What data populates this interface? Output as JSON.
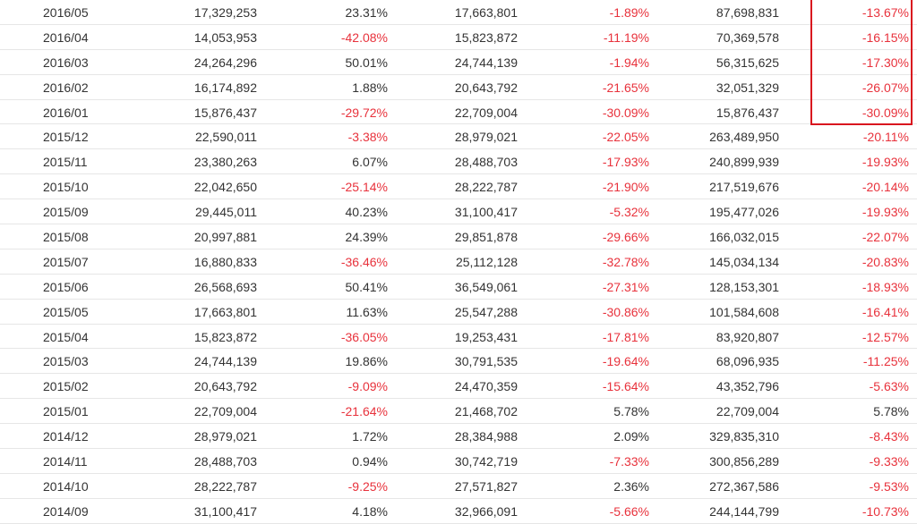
{
  "colors": {
    "text": "#333333",
    "negative": "#e8323c",
    "highlight_border": "#d9141e",
    "row_divider": "#e6e6e6"
  },
  "rows": [
    {
      "period": "2016/05",
      "v1": "17,329,253",
      "p1": "23.31%",
      "v2": "17,663,801",
      "p2": "-1.89%",
      "v3": "87,698,831",
      "p3": "-13.67%"
    },
    {
      "period": "2016/04",
      "v1": "14,053,953",
      "p1": "-42.08%",
      "v2": "15,823,872",
      "p2": "-11.19%",
      "v3": "70,369,578",
      "p3": "-16.15%"
    },
    {
      "period": "2016/03",
      "v1": "24,264,296",
      "p1": "50.01%",
      "v2": "24,744,139",
      "p2": "-1.94%",
      "v3": "56,315,625",
      "p3": "-17.30%"
    },
    {
      "period": "2016/02",
      "v1": "16,174,892",
      "p1": "1.88%",
      "v2": "20,643,792",
      "p2": "-21.65%",
      "v3": "32,051,329",
      "p3": "-26.07%"
    },
    {
      "period": "2016/01",
      "v1": "15,876,437",
      "p1": "-29.72%",
      "v2": "22,709,004",
      "p2": "-30.09%",
      "v3": "15,876,437",
      "p3": "-30.09%"
    },
    {
      "period": "2015/12",
      "v1": "22,590,011",
      "p1": "-3.38%",
      "v2": "28,979,021",
      "p2": "-22.05%",
      "v3": "263,489,950",
      "p3": "-20.11%"
    },
    {
      "period": "2015/11",
      "v1": "23,380,263",
      "p1": "6.07%",
      "v2": "28,488,703",
      "p2": "-17.93%",
      "v3": "240,899,939",
      "p3": "-19.93%"
    },
    {
      "period": "2015/10",
      "v1": "22,042,650",
      "p1": "-25.14%",
      "v2": "28,222,787",
      "p2": "-21.90%",
      "v3": "217,519,676",
      "p3": "-20.14%"
    },
    {
      "period": "2015/09",
      "v1": "29,445,011",
      "p1": "40.23%",
      "v2": "31,100,417",
      "p2": "-5.32%",
      "v3": "195,477,026",
      "p3": "-19.93%"
    },
    {
      "period": "2015/08",
      "v1": "20,997,881",
      "p1": "24.39%",
      "v2": "29,851,878",
      "p2": "-29.66%",
      "v3": "166,032,015",
      "p3": "-22.07%"
    },
    {
      "period": "2015/07",
      "v1": "16,880,833",
      "p1": "-36.46%",
      "v2": "25,112,128",
      "p2": "-32.78%",
      "v3": "145,034,134",
      "p3": "-20.83%"
    },
    {
      "period": "2015/06",
      "v1": "26,568,693",
      "p1": "50.41%",
      "v2": "36,549,061",
      "p2": "-27.31%",
      "v3": "128,153,301",
      "p3": "-18.93%"
    },
    {
      "period": "2015/05",
      "v1": "17,663,801",
      "p1": "11.63%",
      "v2": "25,547,288",
      "p2": "-30.86%",
      "v3": "101,584,608",
      "p3": "-16.41%"
    },
    {
      "period": "2015/04",
      "v1": "15,823,872",
      "p1": "-36.05%",
      "v2": "19,253,431",
      "p2": "-17.81%",
      "v3": "83,920,807",
      "p3": "-12.57%"
    },
    {
      "period": "2015/03",
      "v1": "24,744,139",
      "p1": "19.86%",
      "v2": "30,791,535",
      "p2": "-19.64%",
      "v3": "68,096,935",
      "p3": "-11.25%"
    },
    {
      "period": "2015/02",
      "v1": "20,643,792",
      "p1": "-9.09%",
      "v2": "24,470,359",
      "p2": "-15.64%",
      "v3": "43,352,796",
      "p3": "-5.63%"
    },
    {
      "period": "2015/01",
      "v1": "22,709,004",
      "p1": "-21.64%",
      "v2": "21,468,702",
      "p2": "5.78%",
      "v3": "22,709,004",
      "p3": "5.78%"
    },
    {
      "period": "2014/12",
      "v1": "28,979,021",
      "p1": "1.72%",
      "v2": "28,384,988",
      "p2": "2.09%",
      "v3": "329,835,310",
      "p3": "-8.43%"
    },
    {
      "period": "2014/11",
      "v1": "28,488,703",
      "p1": "0.94%",
      "v2": "30,742,719",
      "p2": "-7.33%",
      "v3": "300,856,289",
      "p3": "-9.33%"
    },
    {
      "period": "2014/10",
      "v1": "28,222,787",
      "p1": "-9.25%",
      "v2": "27,571,827",
      "p2": "2.36%",
      "v3": "272,367,586",
      "p3": "-9.53%"
    },
    {
      "period": "2014/09",
      "v1": "31,100,417",
      "p1": "4.18%",
      "v2": "32,966,091",
      "p2": "-5.66%",
      "v3": "244,144,799",
      "p3": "-10.73%"
    }
  ]
}
